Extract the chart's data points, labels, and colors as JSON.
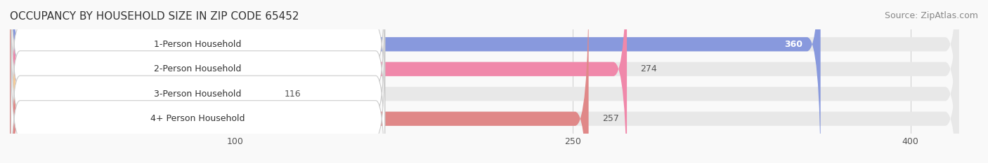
{
  "title": "OCCUPANCY BY HOUSEHOLD SIZE IN ZIP CODE 65452",
  "source": "Source: ZipAtlas.com",
  "categories": [
    "1-Person Household",
    "2-Person Household",
    "3-Person Household",
    "4+ Person Household"
  ],
  "values": [
    360,
    274,
    116,
    257
  ],
  "bar_colors": [
    "#8899dd",
    "#f088aa",
    "#f5cc99",
    "#e08888"
  ],
  "bar_bg_color": "#eeeeee",
  "label_bg_color": "#ffffff",
  "xlim": [
    0,
    430
  ],
  "xticks": [
    100,
    250,
    400
  ],
  "title_fontsize": 11,
  "source_fontsize": 9,
  "bar_label_fontsize": 9,
  "tick_fontsize": 9,
  "category_fontsize": 9,
  "bar_height": 0.55,
  "background_color": "#f9f9f9"
}
